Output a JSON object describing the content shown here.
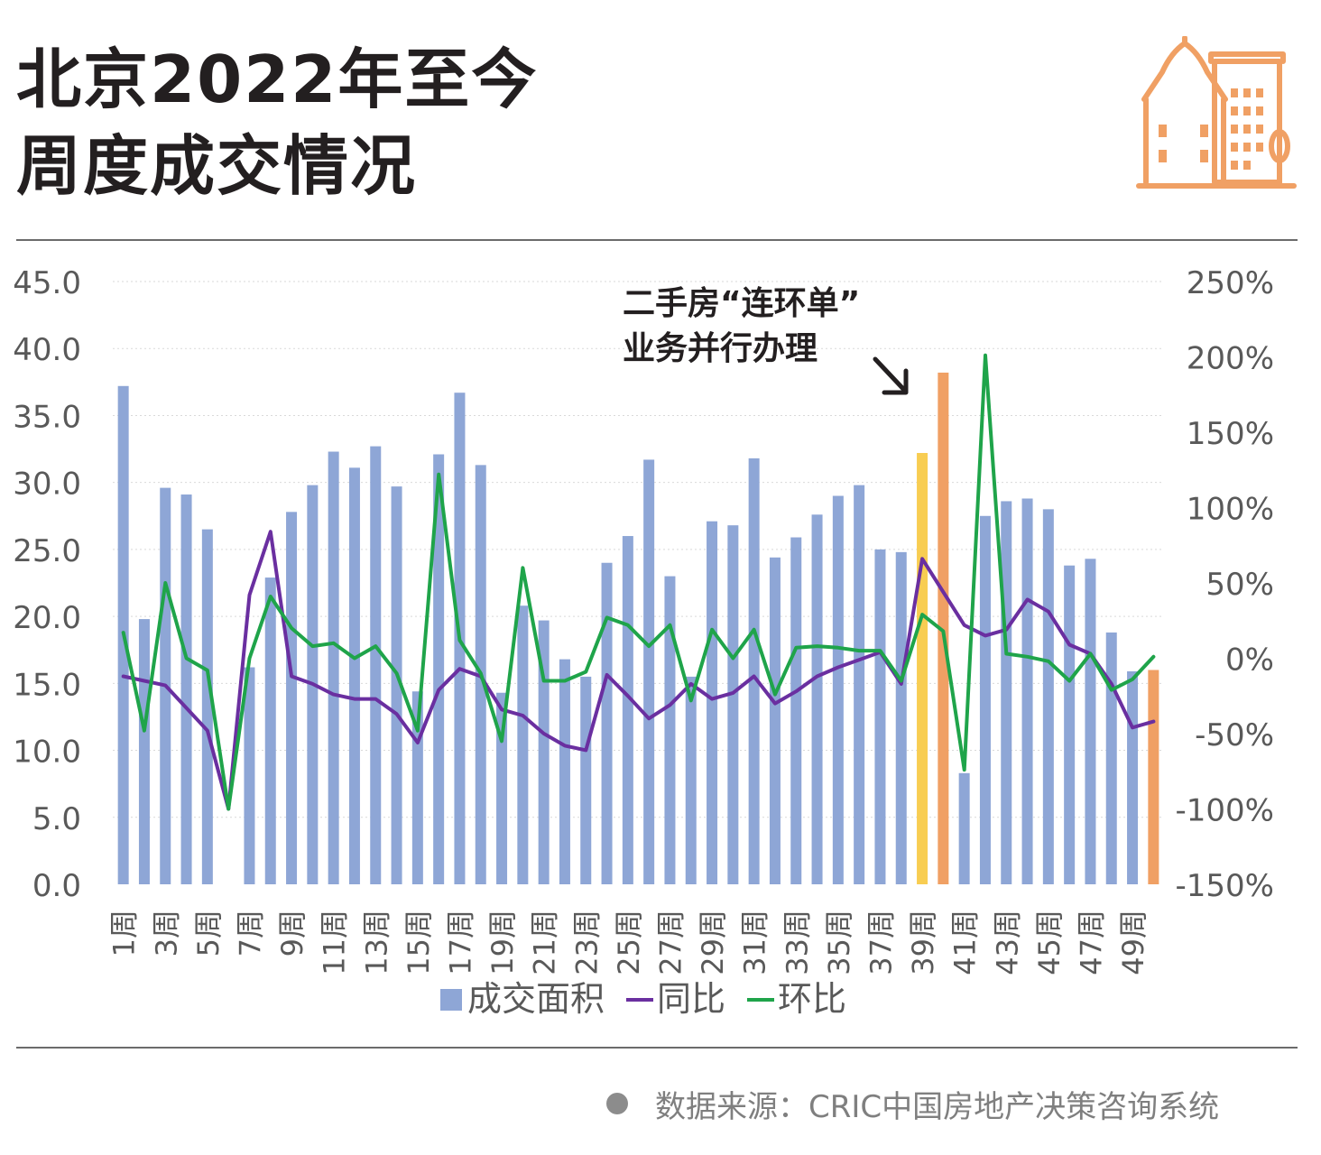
{
  "header": {
    "title_line1": "北京2022年至今",
    "title_line2": "周度成交情况",
    "icon": "city-buildings-icon"
  },
  "annotation": {
    "line1": "二手房“连环单”",
    "line2": "业务并行办理"
  },
  "source": {
    "text": "数据来源：CRIC中国房地产决策咨询系统"
  },
  "colors": {
    "bar": "#8ea6d6",
    "bar_highlight_yellow": "#f8cd52",
    "bar_highlight_orange": "#f0a064",
    "yoy_line": "#6a2fa0",
    "wow_line": "#1fa44a",
    "icon": "#f0a064",
    "text": "#231f20",
    "axis_text": "#595959"
  },
  "chart_data": {
    "type": "bar+line",
    "categories": [
      "1周",
      "2周",
      "3周",
      "4周",
      "5周",
      "6周",
      "7周",
      "8周",
      "9周",
      "10周",
      "11周",
      "12周",
      "13周",
      "14周",
      "15周",
      "16周",
      "17周",
      "18周",
      "19周",
      "20周",
      "21周",
      "22周",
      "23周",
      "24周",
      "25周",
      "26周",
      "27周",
      "28周",
      "29周",
      "30周",
      "31周",
      "32周",
      "33周",
      "34周",
      "35周",
      "36周",
      "37周",
      "38周",
      "39周",
      "40周",
      "41周",
      "42周",
      "43周",
      "44周",
      "45周",
      "46周",
      "47周",
      "48周",
      "49周",
      "50周"
    ],
    "visible_tick_labels": [
      "1周",
      "3周",
      "5周",
      "7周",
      "9周",
      "11周",
      "13周",
      "15周",
      "17周",
      "19周",
      "21周",
      "23周",
      "25周",
      "27周",
      "29周",
      "31周",
      "33周",
      "35周",
      "37周",
      "39周",
      "41周",
      "43周",
      "45周",
      "47周",
      "49周"
    ],
    "y_left": {
      "ticks": [
        "0.0",
        "5.0",
        "10.0",
        "15.0",
        "20.0",
        "25.0",
        "30.0",
        "35.0",
        "40.0",
        "45.0"
      ],
      "range": [
        0,
        45
      ]
    },
    "y_right": {
      "ticks": [
        "-150%",
        "-100%",
        "-50%",
        "0%",
        "50%",
        "100%",
        "150%",
        "200%",
        "250%"
      ],
      "range": [
        -150,
        250
      ]
    },
    "highlight": {
      "39周": "bar_highlight_yellow",
      "40周": "bar_highlight_orange",
      "50周": "bar_highlight_orange"
    },
    "series": [
      {
        "name": "成交面积",
        "kind": "bar",
        "axis": "left",
        "values": [
          37.2,
          19.8,
          29.6,
          29.1,
          26.5,
          0,
          16.2,
          22.9,
          27.8,
          29.8,
          32.3,
          31.1,
          32.7,
          29.7,
          14.4,
          32.1,
          36.7,
          31.3,
          14.3,
          20.8,
          19.7,
          16.8,
          15.5,
          24.0,
          26.0,
          31.7,
          23.0,
          15.5,
          27.1,
          26.8,
          31.8,
          24.4,
          25.9,
          27.6,
          29.0,
          29.8,
          25.0,
          24.8,
          32.2,
          38.2,
          8.3,
          27.5,
          28.6,
          28.8,
          28.0,
          23.8,
          24.3,
          18.8,
          15.9,
          16.0
        ]
      },
      {
        "name": "同比",
        "kind": "line",
        "axis": "right",
        "values": [
          -12,
          -15,
          -18,
          -33,
          -48,
          -100,
          42,
          84,
          -12,
          -17,
          -24,
          -27,
          -27,
          -37,
          -56,
          -21,
          -7,
          -12,
          -34,
          -38,
          -50,
          -58,
          -61,
          -11,
          -25,
          -40,
          -31,
          -17,
          -27,
          -23,
          -12,
          -30,
          -22,
          -12,
          -6,
          -1,
          4,
          -17,
          66,
          44,
          22,
          15,
          19,
          39,
          31,
          9,
          3,
          -17,
          -46,
          -42
        ]
      },
      {
        "name": "环比",
        "kind": "line",
        "axis": "right",
        "values": [
          17,
          -48,
          50,
          0,
          -8,
          -100,
          0,
          41,
          20,
          8,
          10,
          0,
          8,
          -10,
          -48,
          122,
          12,
          -10,
          -55,
          60,
          -15,
          -15,
          -9,
          27,
          22,
          8,
          22,
          -28,
          19,
          0,
          19,
          -24,
          7,
          8,
          7,
          5,
          5,
          -15,
          29,
          18,
          -74,
          201,
          3,
          1,
          -2,
          -15,
          3,
          -21,
          -14,
          1
        ]
      }
    ]
  }
}
